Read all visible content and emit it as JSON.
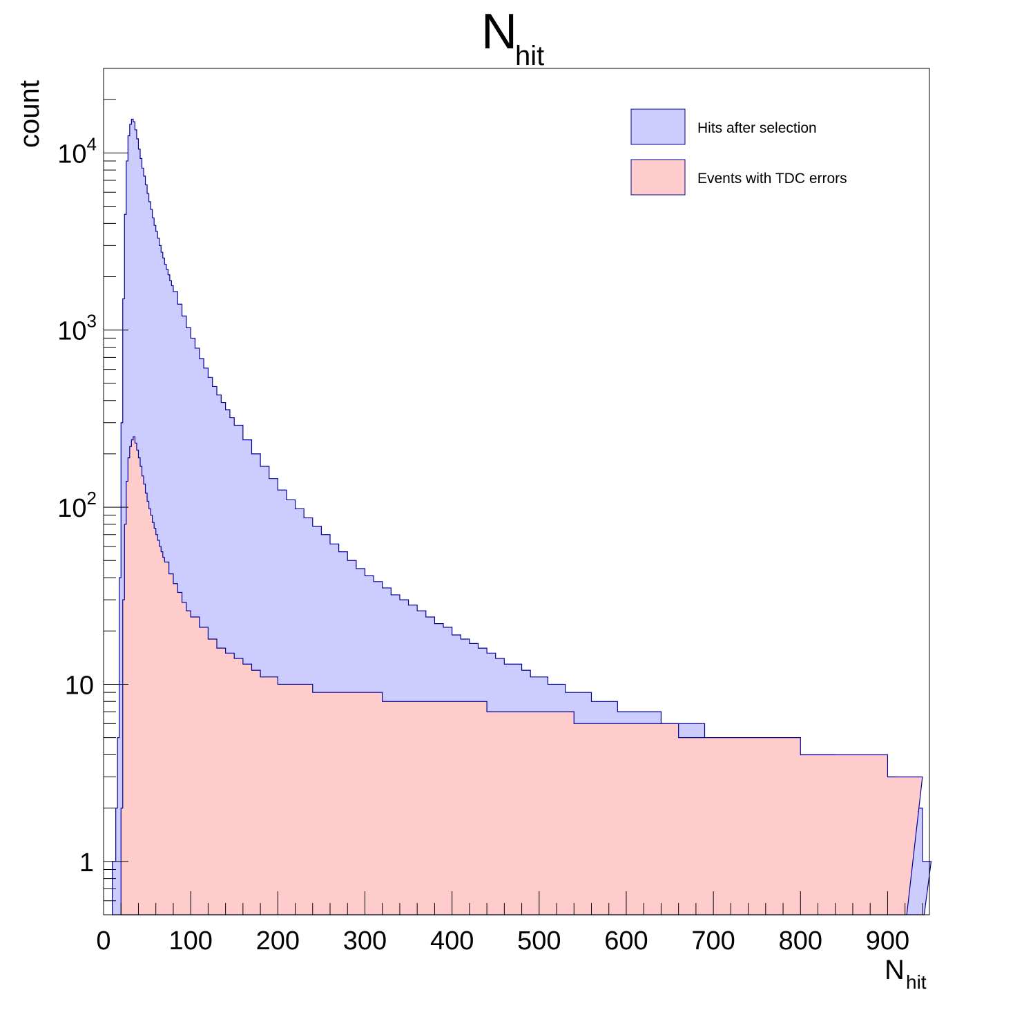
{
  "chart_data": {
    "type": "histogram",
    "title": "N",
    "title_subscript": "hit",
    "xlabel": "N",
    "xlabel_subscript": "hit",
    "ylabel": "count",
    "xlim": [
      0,
      948
    ],
    "ylim": [
      0.5,
      30000
    ],
    "y_scale": "log",
    "grid": false,
    "legend_position": "top-right",
    "x_ticks": [
      0,
      100,
      200,
      300,
      400,
      500,
      600,
      700,
      800,
      900
    ],
    "x_tick_labels": [
      "0",
      "100",
      "200",
      "300",
      "400",
      "500",
      "600",
      "700",
      "800",
      "900"
    ],
    "y_ticks": [
      1,
      10,
      100,
      1000,
      10000
    ],
    "y_tick_labels": [
      {
        "base": "1",
        "exp": ""
      },
      {
        "base": "10",
        "exp": ""
      },
      {
        "base": "10",
        "exp": "2"
      },
      {
        "base": "10",
        "exp": "3"
      },
      {
        "base": "10",
        "exp": "4"
      }
    ],
    "series": [
      {
        "name": "Hits after selection",
        "fill": "#ccccff",
        "line": "#000099",
        "x": [
          10,
          12,
          14,
          16,
          18,
          20,
          22,
          24,
          26,
          28,
          30,
          32,
          34,
          36,
          38,
          40,
          42,
          44,
          46,
          48,
          50,
          52,
          54,
          56,
          58,
          60,
          62,
          64,
          66,
          68,
          70,
          72,
          74,
          76,
          78,
          80,
          85,
          90,
          95,
          100,
          105,
          110,
          115,
          120,
          125,
          130,
          135,
          140,
          145,
          150,
          160,
          170,
          180,
          190,
          200,
          210,
          220,
          230,
          240,
          250,
          260,
          270,
          280,
          290,
          300,
          310,
          320,
          330,
          340,
          350,
          360,
          370,
          380,
          390,
          400,
          410,
          420,
          430,
          440,
          450,
          460,
          470,
          480,
          490,
          500,
          510,
          520,
          530,
          540,
          550,
          560,
          570,
          580,
          590,
          600,
          610,
          620,
          630,
          640,
          650,
          660,
          670,
          680,
          690,
          700,
          710,
          720,
          730,
          740,
          750,
          760,
          770,
          780,
          790,
          800,
          810,
          820,
          830,
          840,
          850,
          860,
          870,
          880,
          890,
          900,
          910,
          920,
          930,
          940
        ],
        "y": [
          1,
          1,
          2,
          5,
          40,
          300,
          1500,
          4500,
          9000,
          12500,
          14500,
          15500,
          15000,
          13500,
          12000,
          10500,
          9300,
          8200,
          7400,
          6600,
          5900,
          5300,
          4800,
          4300,
          3900,
          3600,
          3300,
          3000,
          2750,
          2550,
          2350,
          2200,
          2050,
          1900,
          1780,
          1650,
          1400,
          1200,
          1030,
          900,
          790,
          690,
          610,
          540,
          480,
          430,
          390,
          355,
          320,
          290,
          240,
          200,
          170,
          145,
          125,
          110,
          98,
          87,
          78,
          70,
          62,
          56,
          50,
          45,
          41,
          38,
          35,
          32,
          30,
          28,
          26,
          24,
          22,
          21,
          19,
          18,
          17,
          16,
          15,
          14,
          13,
          13,
          12,
          11,
          11,
          10,
          10,
          9,
          9,
          9,
          8,
          8,
          8,
          7,
          7,
          7,
          7,
          7,
          6,
          6,
          6,
          6,
          6,
          5,
          5,
          5,
          5,
          5,
          5,
          5,
          4,
          4,
          4,
          4,
          4,
          4,
          4,
          4,
          3,
          3,
          3,
          3,
          3,
          3,
          3,
          2,
          2,
          2,
          1
        ]
      },
      {
        "name": "Events with TDC errors",
        "fill": "#ffcccc",
        "line": "#000099",
        "x": [
          20,
          22,
          24,
          26,
          28,
          30,
          32,
          34,
          36,
          38,
          40,
          42,
          44,
          46,
          48,
          50,
          52,
          54,
          56,
          58,
          60,
          62,
          64,
          66,
          68,
          70,
          75,
          80,
          85,
          90,
          95,
          100,
          110,
          120,
          130,
          140,
          150,
          160,
          170,
          180,
          190,
          200,
          220,
          240,
          260,
          280,
          300,
          320,
          340,
          360,
          380,
          400,
          420,
          440,
          460,
          480,
          500,
          520,
          540,
          560,
          580,
          600,
          620,
          640,
          660,
          680,
          700,
          720,
          740,
          760,
          780,
          800,
          820,
          840,
          860,
          880,
          900,
          920
        ],
        "y": [
          2,
          30,
          80,
          140,
          190,
          220,
          240,
          250,
          230,
          210,
          190,
          170,
          150,
          135,
          120,
          108,
          98,
          90,
          82,
          76,
          70,
          65,
          60,
          56,
          52,
          49,
          42,
          37,
          33,
          29,
          26,
          24,
          21,
          18,
          16,
          15,
          14,
          13,
          12,
          11,
          11,
          10,
          10,
          9,
          9,
          9,
          9,
          8,
          8,
          8,
          8,
          8,
          8,
          7,
          7,
          7,
          7,
          7,
          6,
          6,
          6,
          6,
          6,
          6,
          5,
          5,
          5,
          5,
          5,
          5,
          5,
          4,
          4,
          4,
          4,
          4,
          3,
          3
        ]
      }
    ]
  }
}
